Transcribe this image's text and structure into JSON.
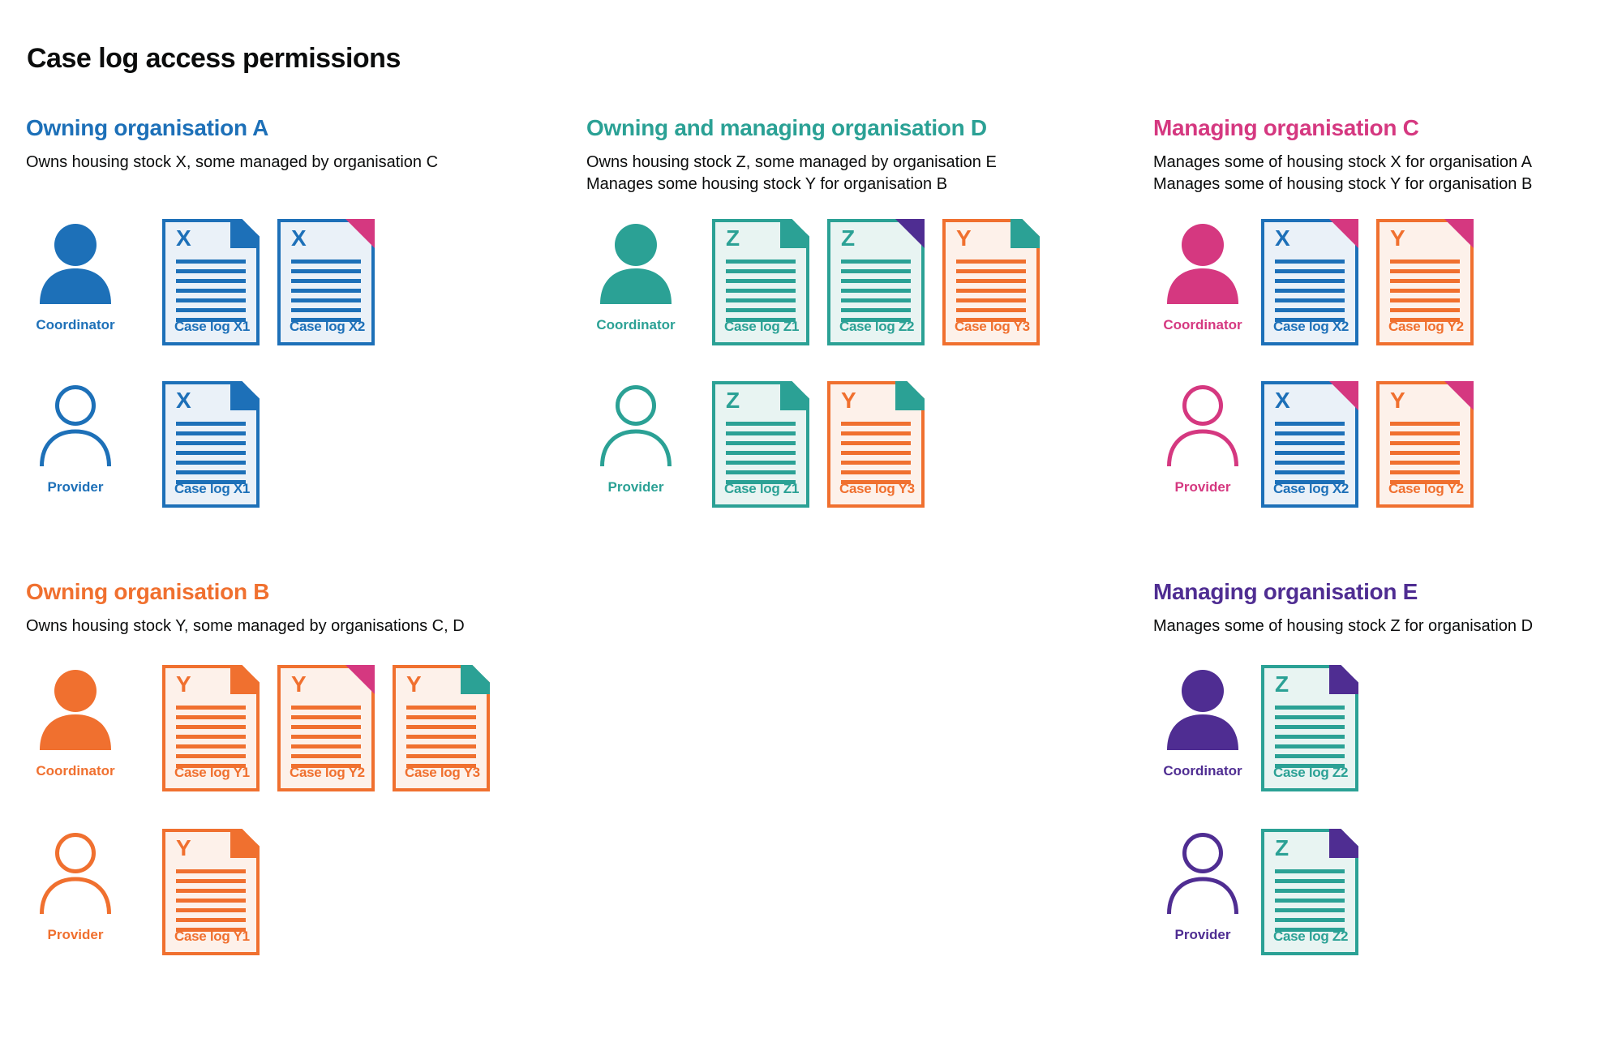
{
  "page_title": "Case log access permissions",
  "colors": {
    "blue": "#1d70b8",
    "teal": "#2ba195",
    "pink": "#d53880",
    "orange": "#f0702f",
    "purple": "#4f2d92",
    "text": "#0b0c0c"
  },
  "tints": {
    "blue": "#eaf1f8",
    "teal": "#e8f4f2",
    "orange": "#fdf1ea"
  },
  "sections": [
    {
      "key": "sec-a",
      "title": "Owning organisation A",
      "color": "blue",
      "description": [
        "Owns housing stock X, some managed by organisation C"
      ],
      "rows": [
        {
          "role": "Coordinator",
          "person_style": "filled",
          "docs": [
            {
              "letter": "X",
              "label": "Case log X1",
              "doc_color": "blue",
              "fold_color": "blue",
              "fold_style": "flap"
            },
            {
              "letter": "X",
              "label": "Case log X2",
              "doc_color": "blue",
              "fold_color": "pink",
              "fold_style": "corner"
            }
          ]
        },
        {
          "role": "Provider",
          "person_style": "outline",
          "docs": [
            {
              "letter": "X",
              "label": "Case log X1",
              "doc_color": "blue",
              "fold_color": "blue",
              "fold_style": "flap"
            }
          ]
        }
      ]
    },
    {
      "key": "sec-d",
      "title": "Owning and managing organisation D",
      "color": "teal",
      "description": [
        "Owns housing stock Z, some managed by organisation E",
        "Manages some housing stock Y for organisation B"
      ],
      "rows": [
        {
          "role": "Coordinator",
          "person_style": "filled",
          "docs": [
            {
              "letter": "Z",
              "label": "Case log Z1",
              "doc_color": "teal",
              "fold_color": "teal",
              "fold_style": "flap"
            },
            {
              "letter": "Z",
              "label": "Case log Z2",
              "doc_color": "teal",
              "fold_color": "purple",
              "fold_style": "corner"
            },
            {
              "letter": "Y",
              "label": "Case log Y3",
              "doc_color": "orange",
              "fold_color": "teal",
              "fold_style": "flap"
            }
          ]
        },
        {
          "role": "Provider",
          "person_style": "outline",
          "docs": [
            {
              "letter": "Z",
              "label": "Case log Z1",
              "doc_color": "teal",
              "fold_color": "teal",
              "fold_style": "flap"
            },
            {
              "letter": "Y",
              "label": "Case log Y3",
              "doc_color": "orange",
              "fold_color": "teal",
              "fold_style": "flap"
            }
          ]
        }
      ]
    },
    {
      "key": "sec-c",
      "title": "Managing organisation C",
      "color": "pink",
      "description": [
        "Manages some of housing stock X for organisation A",
        "Manages some of housing stock Y for organisation B"
      ],
      "rows": [
        {
          "role": "Coordinator",
          "person_style": "filled",
          "docs": [
            {
              "letter": "X",
              "label": "Case log X2",
              "doc_color": "blue",
              "fold_color": "pink",
              "fold_style": "corner"
            },
            {
              "letter": "Y",
              "label": "Case log Y2",
              "doc_color": "orange",
              "fold_color": "pink",
              "fold_style": "corner"
            }
          ]
        },
        {
          "role": "Provider",
          "person_style": "outline",
          "docs": [
            {
              "letter": "X",
              "label": "Case log X2",
              "doc_color": "blue",
              "fold_color": "pink",
              "fold_style": "corner"
            },
            {
              "letter": "Y",
              "label": "Case log Y2",
              "doc_color": "orange",
              "fold_color": "pink",
              "fold_style": "corner"
            }
          ]
        }
      ]
    },
    {
      "key": "sec-b",
      "title": "Owning organisation B",
      "color": "orange",
      "description": [
        "Owns housing stock Y, some managed by organisations C, D"
      ],
      "rows": [
        {
          "role": "Coordinator",
          "person_style": "filled",
          "docs": [
            {
              "letter": "Y",
              "label": "Case log Y1",
              "doc_color": "orange",
              "fold_color": "orange",
              "fold_style": "flap"
            },
            {
              "letter": "Y",
              "label": "Case log Y2",
              "doc_color": "orange",
              "fold_color": "pink",
              "fold_style": "corner"
            },
            {
              "letter": "Y",
              "label": "Case log Y3",
              "doc_color": "orange",
              "fold_color": "teal",
              "fold_style": "flap"
            }
          ]
        },
        {
          "role": "Provider",
          "person_style": "outline",
          "docs": [
            {
              "letter": "Y",
              "label": "Case log Y1",
              "doc_color": "orange",
              "fold_color": "orange",
              "fold_style": "flap"
            }
          ]
        }
      ]
    },
    {
      "key": "sec-e",
      "title": "Managing organisation E",
      "color": "purple",
      "description": [
        "Manages some of housing stock Z for organisation D"
      ],
      "rows": [
        {
          "role": "Coordinator",
          "person_style": "filled",
          "docs": [
            {
              "letter": "Z",
              "label": "Case log Z2",
              "doc_color": "teal",
              "fold_color": "purple",
              "fold_style": "flap"
            }
          ]
        },
        {
          "role": "Provider",
          "person_style": "outline",
          "docs": [
            {
              "letter": "Z",
              "label": "Case log Z2",
              "doc_color": "teal",
              "fold_color": "purple",
              "fold_style": "flap"
            }
          ]
        }
      ]
    }
  ]
}
